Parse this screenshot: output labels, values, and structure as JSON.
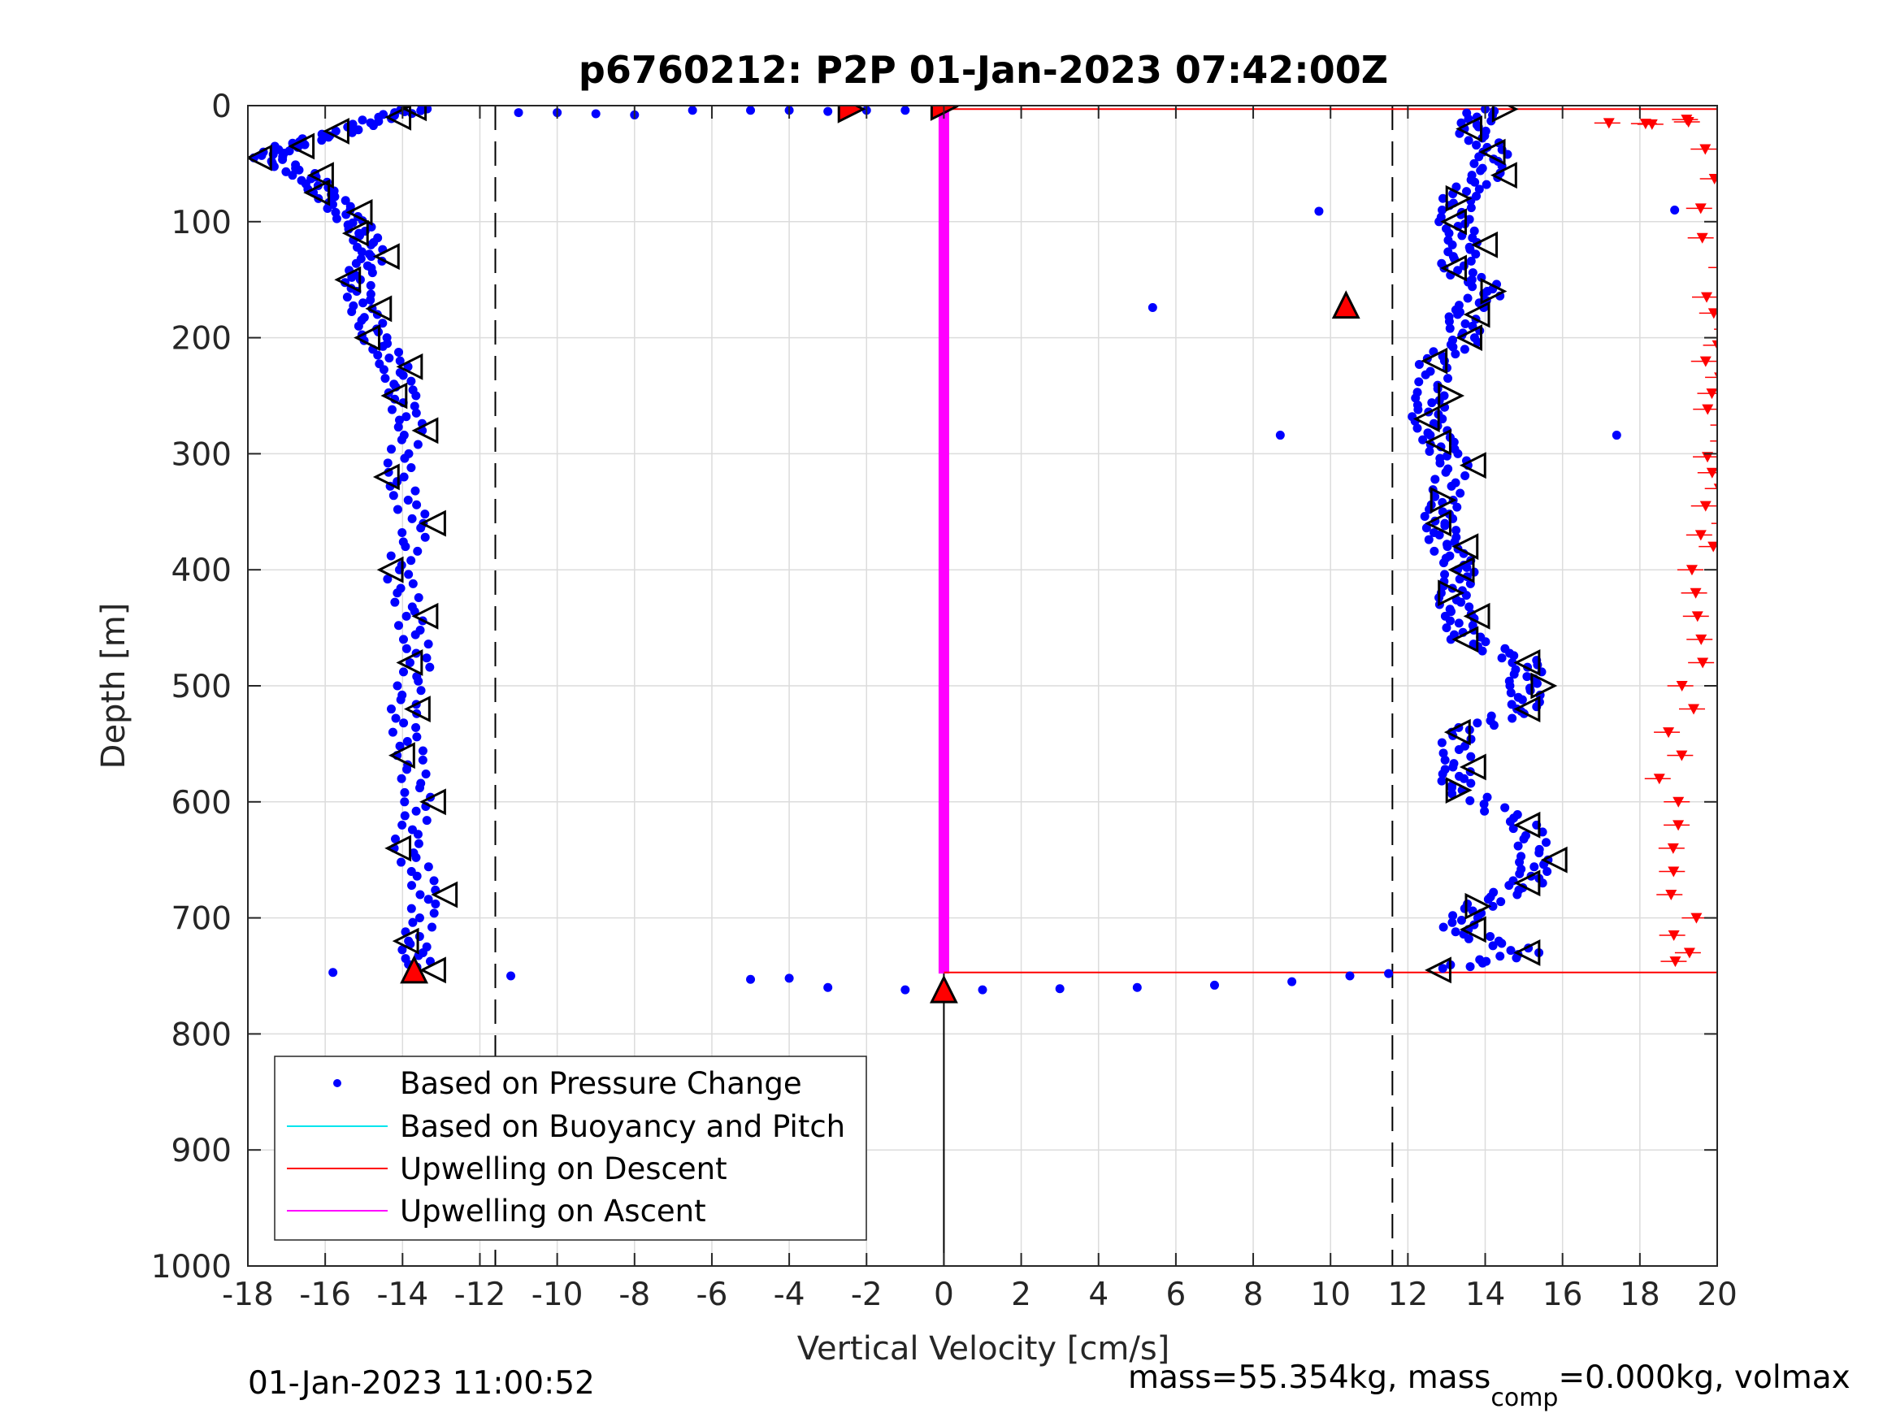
{
  "chart_data": {
    "type": "scatter",
    "title": "p6760212: P2P 01-Jan-2023 07:42:00Z",
    "xlabel": "Vertical Velocity [cm/s]",
    "ylabel": "Depth [m]",
    "xlim": [
      -18,
      20
    ],
    "ylim": [
      0,
      1000
    ],
    "y_reversed": true,
    "grid": true,
    "xticks": [
      "-18",
      "-16",
      "-14",
      "-12",
      "-10",
      "-8",
      "-6",
      "-4",
      "-2",
      "0",
      "2",
      "4",
      "6",
      "8",
      "10",
      "12",
      "14",
      "16",
      "18",
      "20"
    ],
    "yticks": [
      "0",
      "100",
      "200",
      "300",
      "400",
      "500",
      "600",
      "700",
      "800",
      "900",
      "1000"
    ],
    "legend_position": "bottom-left",
    "legend": [
      {
        "label": "Based on Pressure Change",
        "color": "#0000ff",
        "marker": "dot"
      },
      {
        "label": "Based on Buoyancy and Pitch",
        "color": "#00e5ee",
        "marker": "line"
      },
      {
        "label": "Upwelling on Descent",
        "color": "#ff0000",
        "marker": "line"
      },
      {
        "label": "Upwelling on Ascent",
        "color": "#ff00ff",
        "marker": "line"
      }
    ],
    "reference_lines": {
      "dashed_x": [
        -11.6,
        11.6
      ],
      "solid_x": [
        0
      ]
    },
    "series": [
      {
        "name": "Based on Pressure Change",
        "color": "#0000ff",
        "descent_profile": [
          [
            -13.5,
            2
          ],
          [
            -14.5,
            10
          ],
          [
            -15.5,
            22
          ],
          [
            -17,
            35
          ],
          [
            -17.5,
            45
          ],
          [
            -16.5,
            60
          ],
          [
            -16,
            75
          ],
          [
            -15.5,
            92
          ],
          [
            -15,
            110
          ],
          [
            -14.8,
            130
          ],
          [
            -15.2,
            150
          ],
          [
            -15,
            175
          ],
          [
            -14.7,
            200
          ],
          [
            -14.2,
            225
          ],
          [
            -14,
            250
          ],
          [
            -13.8,
            280
          ],
          [
            -14.2,
            320
          ],
          [
            -13.6,
            360
          ],
          [
            -14.1,
            400
          ],
          [
            -13.8,
            440
          ],
          [
            -13.6,
            480
          ],
          [
            -14,
            520
          ],
          [
            -13.8,
            560
          ],
          [
            -13.6,
            600
          ],
          [
            -13.9,
            640
          ],
          [
            -13.3,
            680
          ],
          [
            -13.7,
            720
          ],
          [
            -13.6,
            745
          ]
        ],
        "ascent_profile": [
          [
            14,
            3
          ],
          [
            13.6,
            20
          ],
          [
            14.2,
            40
          ],
          [
            14,
            60
          ],
          [
            13.3,
            80
          ],
          [
            13.2,
            100
          ],
          [
            13.5,
            120
          ],
          [
            13.2,
            140
          ],
          [
            14.2,
            160
          ],
          [
            13.3,
            180
          ],
          [
            13.6,
            200
          ],
          [
            12.7,
            220
          ],
          [
            12.6,
            250
          ],
          [
            12.5,
            270
          ],
          [
            12.8,
            290
          ],
          [
            13.2,
            310
          ],
          [
            12.9,
            340
          ],
          [
            12.8,
            360
          ],
          [
            13,
            380
          ],
          [
            13.4,
            400
          ],
          [
            13.1,
            420
          ],
          [
            13.3,
            440
          ],
          [
            13.5,
            460
          ],
          [
            15.1,
            480
          ],
          [
            15,
            500
          ],
          [
            15.1,
            520
          ],
          [
            13.3,
            540
          ],
          [
            13.2,
            570
          ],
          [
            13.3,
            590
          ],
          [
            15.1,
            620
          ],
          [
            15.3,
            650
          ],
          [
            15.1,
            670
          ],
          [
            13.8,
            690
          ],
          [
            13.2,
            710
          ],
          [
            15.1,
            730
          ],
          [
            12.8,
            745
          ]
        ],
        "surface_points": [
          [
            -11,
            6
          ],
          [
            -10,
            6
          ],
          [
            -9,
            7
          ],
          [
            -8,
            8
          ],
          [
            -6.5,
            4
          ],
          [
            -5,
            4
          ],
          [
            -4,
            4
          ],
          [
            -3,
            5
          ],
          [
            -2,
            4
          ],
          [
            -1,
            4
          ]
        ],
        "bottom_points": [
          [
            -5,
            753
          ],
          [
            -4,
            752
          ],
          [
            -3,
            760
          ],
          [
            -1,
            762
          ],
          [
            1,
            762
          ],
          [
            3,
            761
          ],
          [
            5,
            760
          ],
          [
            7,
            758
          ],
          [
            9,
            755
          ],
          [
            10.5,
            750
          ],
          [
            11.5,
            748
          ]
        ],
        "outliers": [
          [
            -15.8,
            747
          ],
          [
            -11.2,
            750
          ],
          [
            5.4,
            174
          ],
          [
            8.7,
            284
          ],
          [
            9.7,
            91
          ],
          [
            10.4,
            175
          ],
          [
            17.4,
            284
          ],
          [
            18.9,
            90
          ]
        ]
      },
      {
        "name": "Upwelling on Descent",
        "color": "#ff0000",
        "points": [
          [
            17.2,
            15
          ],
          [
            18.5,
            16
          ],
          [
            19.5,
            12
          ],
          [
            20,
            165
          ],
          [
            20,
            248
          ],
          [
            20,
            330
          ],
          [
            20,
            360
          ],
          [
            19.6,
            380
          ],
          [
            19.2,
            420
          ],
          [
            19.5,
            460
          ],
          [
            19.2,
            500
          ],
          [
            19,
            540
          ],
          [
            18.8,
            580
          ],
          [
            19.2,
            620
          ],
          [
            18.9,
            660
          ],
          [
            19.3,
            700
          ],
          [
            19,
            730
          ],
          [
            19.1,
            745
          ]
        ]
      },
      {
        "name": "Upwelling on Ascent",
        "color": "#ff00ff",
        "points": [
          [
            0,
            0
          ],
          [
            0,
            748
          ]
        ]
      }
    ],
    "markers": [
      {
        "shape": "triangle-right",
        "fill": "#ff0000",
        "x": -2.4,
        "y": 3
      },
      {
        "shape": "triangle-right",
        "fill": "#ff0000",
        "x": 0,
        "y": 1
      },
      {
        "shape": "triangle-up",
        "fill": "#ff0000",
        "x": 10.4,
        "y": 172
      },
      {
        "shape": "triangle-up",
        "fill": "#ff0000",
        "x": -13.7,
        "y": 745
      },
      {
        "shape": "triangle-up",
        "fill": "#ff0000",
        "x": 0,
        "y": 762
      }
    ]
  },
  "footer": {
    "timestamp": "01-Jan-2023 11:00:52",
    "mass_text_1": "mass=55.354kg, mass",
    "mass_sub": "comp",
    "mass_text_2": "=0.000kg, volmax"
  }
}
